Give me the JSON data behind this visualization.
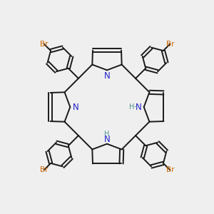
{
  "bg_color": "#efefef",
  "bond_color": "#1a1a1a",
  "N_color": "#2222cc",
  "NH_color": "#4d9090",
  "Br_color": "#cc6600",
  "lw": 1.4,
  "figsize": [
    3.0,
    3.0
  ],
  "dpi": 100,
  "xlim": [
    -1.15,
    1.15
  ],
  "ylim": [
    -1.15,
    1.15
  ]
}
